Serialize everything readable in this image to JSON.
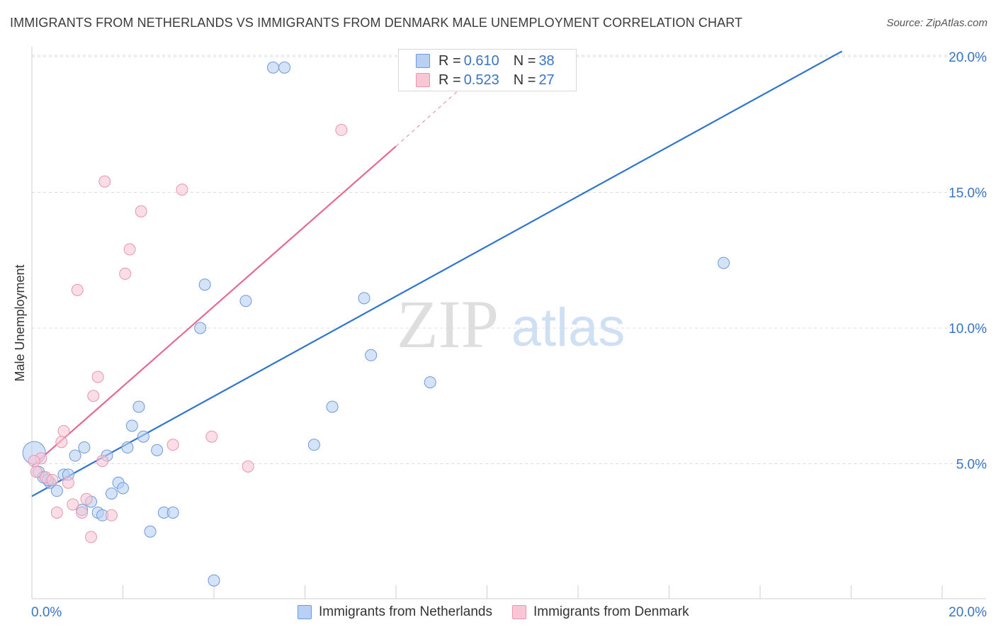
{
  "title": "IMMIGRANTS FROM NETHERLANDS VS IMMIGRANTS FROM DENMARK MALE UNEMPLOYMENT CORRELATION CHART",
  "source": "Source: ZipAtlas.com",
  "watermark": {
    "zip": "ZIP",
    "atlas": "atlas"
  },
  "stats": [
    {
      "r_label": "R = ",
      "r_value": "0.610",
      "n_label": "N = ",
      "n_value": "38"
    },
    {
      "r_label": "R = ",
      "r_value": "0.523",
      "n_label": "N = ",
      "n_value": "27"
    }
  ],
  "legend": [
    {
      "label": "Immigrants from Netherlands"
    },
    {
      "label": "Immigrants from Denmark"
    }
  ],
  "colors": {
    "netherlands_fill": "#b8d0f3",
    "netherlands_stroke": "#6f9ad8",
    "netherlands_line": "#2f74cf",
    "denmark_fill": "#f8c7d6",
    "denmark_stroke": "#e896b1",
    "denmark_line": "#e46a93",
    "axis_text": "#3a74c4",
    "grid": "#dcdcdc"
  },
  "chart_data": {
    "type": "scatter",
    "title": "IMMIGRANTS FROM NETHERLANDS VS IMMIGRANTS FROM DENMARK MALE UNEMPLOYMENT CORRELATION CHART",
    "xlabel": "",
    "ylabel": "Male Unemployment",
    "xlim": [
      0,
      20
    ],
    "ylim": [
      0,
      20.5
    ],
    "x_tick_labels": [
      "0.0%",
      "20.0%"
    ],
    "y_ticks": [
      5,
      10,
      15,
      20
    ],
    "y_tick_labels": [
      "5.0%",
      "10.0%",
      "15.0%",
      "20.0%"
    ],
    "grid": true,
    "series": [
      {
        "name": "Immigrants from Netherlands",
        "r": 0.61,
        "n": 38,
        "trend": {
          "x": [
            0,
            17.8
          ],
          "y": [
            3.8,
            20.2
          ]
        },
        "points": [
          {
            "x": 0.05,
            "y": 5.4,
            "big": true
          },
          {
            "x": 0.15,
            "y": 4.7
          },
          {
            "x": 0.25,
            "y": 4.5
          },
          {
            "x": 0.4,
            "y": 4.3
          },
          {
            "x": 0.55,
            "y": 4.0
          },
          {
            "x": 0.7,
            "y": 4.6
          },
          {
            "x": 0.8,
            "y": 4.6
          },
          {
            "x": 0.95,
            "y": 5.3
          },
          {
            "x": 1.1,
            "y": 3.3
          },
          {
            "x": 1.15,
            "y": 5.6
          },
          {
            "x": 1.3,
            "y": 3.6
          },
          {
            "x": 1.45,
            "y": 3.2
          },
          {
            "x": 1.55,
            "y": 3.1
          },
          {
            "x": 1.65,
            "y": 5.3
          },
          {
            "x": 1.75,
            "y": 3.9
          },
          {
            "x": 1.9,
            "y": 4.3
          },
          {
            "x": 2.0,
            "y": 4.1
          },
          {
            "x": 2.1,
            "y": 5.6
          },
          {
            "x": 2.2,
            "y": 6.4
          },
          {
            "x": 2.35,
            "y": 7.1
          },
          {
            "x": 2.45,
            "y": 6.0
          },
          {
            "x": 2.6,
            "y": 2.5
          },
          {
            "x": 2.75,
            "y": 5.5
          },
          {
            "x": 2.9,
            "y": 3.2
          },
          {
            "x": 3.1,
            "y": 3.2
          },
          {
            "x": 3.7,
            "y": 10.0
          },
          {
            "x": 3.8,
            "y": 11.6
          },
          {
            "x": 4.0,
            "y": 0.7
          },
          {
            "x": 4.7,
            "y": 11.0
          },
          {
            "x": 5.3,
            "y": 19.6
          },
          {
            "x": 5.55,
            "y": 19.6
          },
          {
            "x": 6.2,
            "y": 5.7
          },
          {
            "x": 6.6,
            "y": 7.1
          },
          {
            "x": 7.3,
            "y": 11.1
          },
          {
            "x": 7.45,
            "y": 9.0
          },
          {
            "x": 8.75,
            "y": 8.0
          },
          {
            "x": 15.2,
            "y": 12.4
          },
          {
            "x": 0.35,
            "y": 4.4
          }
        ]
      },
      {
        "name": "Immigrants from Denmark",
        "r": 0.523,
        "n": 27,
        "trend": {
          "x": [
            0,
            8.0
          ],
          "y": [
            4.9,
            16.7
          ]
        },
        "trend_dashed": {
          "x": [
            8.0,
            9.8
          ],
          "y": [
            16.7,
            19.4
          ]
        },
        "points": [
          {
            "x": 0.1,
            "y": 4.7
          },
          {
            "x": 0.2,
            "y": 5.2
          },
          {
            "x": 0.3,
            "y": 4.5
          },
          {
            "x": 0.45,
            "y": 4.4
          },
          {
            "x": 0.55,
            "y": 3.2
          },
          {
            "x": 0.65,
            "y": 5.8
          },
          {
            "x": 0.7,
            "y": 6.2
          },
          {
            "x": 0.8,
            "y": 4.3
          },
          {
            "x": 0.9,
            "y": 3.5
          },
          {
            "x": 1.0,
            "y": 11.4
          },
          {
            "x": 1.1,
            "y": 3.2
          },
          {
            "x": 1.2,
            "y": 3.7
          },
          {
            "x": 1.3,
            "y": 2.3
          },
          {
            "x": 1.35,
            "y": 7.5
          },
          {
            "x": 1.45,
            "y": 8.2
          },
          {
            "x": 1.55,
            "y": 5.1
          },
          {
            "x": 1.6,
            "y": 15.4
          },
          {
            "x": 1.75,
            "y": 3.1
          },
          {
            "x": 2.05,
            "y": 12.0
          },
          {
            "x": 2.15,
            "y": 12.9
          },
          {
            "x": 2.4,
            "y": 14.3
          },
          {
            "x": 3.1,
            "y": 5.7
          },
          {
            "x": 3.3,
            "y": 15.1
          },
          {
            "x": 3.95,
            "y": 6.0
          },
          {
            "x": 4.75,
            "y": 4.9
          },
          {
            "x": 6.8,
            "y": 17.3
          },
          {
            "x": 0.05,
            "y": 5.1
          }
        ]
      }
    ]
  }
}
